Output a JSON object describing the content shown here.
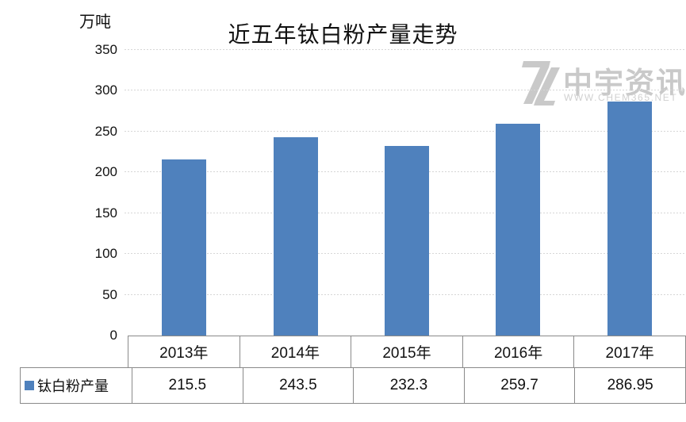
{
  "chart_data": {
    "type": "bar",
    "title": "近五年钛白粉产量走势",
    "unit_label": "万吨",
    "categories": [
      "2013年",
      "2014年",
      "2015年",
      "2016年",
      "2017年"
    ],
    "series": [
      {
        "name": "钛白粉产量",
        "values": [
          215.5,
          243.5,
          232.3,
          259.7,
          286.95
        ]
      }
    ],
    "ylim": [
      0,
      350
    ],
    "yticks": [
      0,
      50,
      100,
      150,
      200,
      250,
      300,
      350
    ],
    "grid": "horizontal-dashed",
    "bar_color": "#4f81bd",
    "gridline_color": "#d6d6d6",
    "legend_position": "table-row-left"
  },
  "watermark": {
    "brand": "中宇资讯",
    "url": "WWW.CHEM365.NET"
  }
}
